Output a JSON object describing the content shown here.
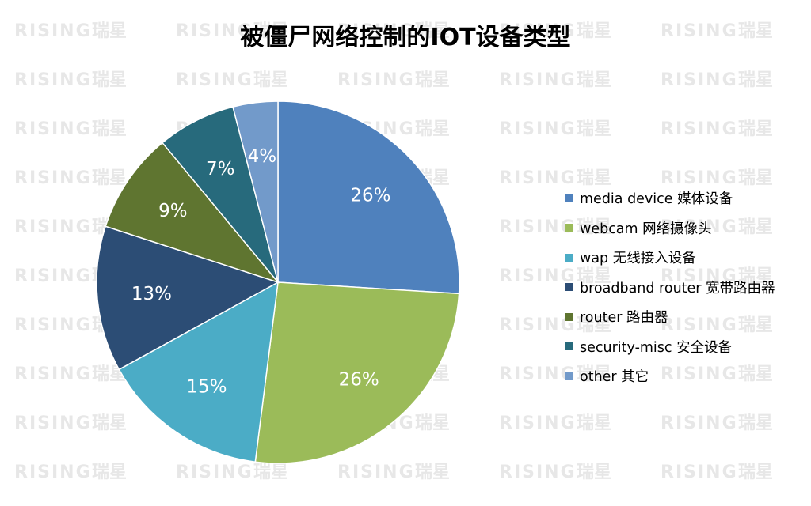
{
  "watermark": {
    "text_en": "RISING",
    "text_cn": "瑞星"
  },
  "chart_data": {
    "type": "pie",
    "title": "被僵尸网络控制的IOT设备类型",
    "legend_position": "right",
    "slices": [
      {
        "label": "media device 媒体设备",
        "value": 26,
        "display": "26%",
        "color": "#4F81BD"
      },
      {
        "label": "webcam 网络摄像头",
        "value": 26,
        "display": "26%",
        "color": "#9BBB59"
      },
      {
        "label": "wap 无线接入设备",
        "value": 15,
        "display": "15%",
        "color": "#4BACC6"
      },
      {
        "label": "broadband router 宽带路由器",
        "value": 13,
        "display": "13%",
        "color": "#2C4D75"
      },
      {
        "label": "router 路由器",
        "value": 9,
        "display": "9%",
        "color": "#5F7530"
      },
      {
        "label": "security-misc 安全设备",
        "value": 7,
        "display": "7%",
        "color": "#276A7C"
      },
      {
        "label": "other 其它",
        "value": 4,
        "display": "4%",
        "color": "#729ACA"
      }
    ]
  }
}
